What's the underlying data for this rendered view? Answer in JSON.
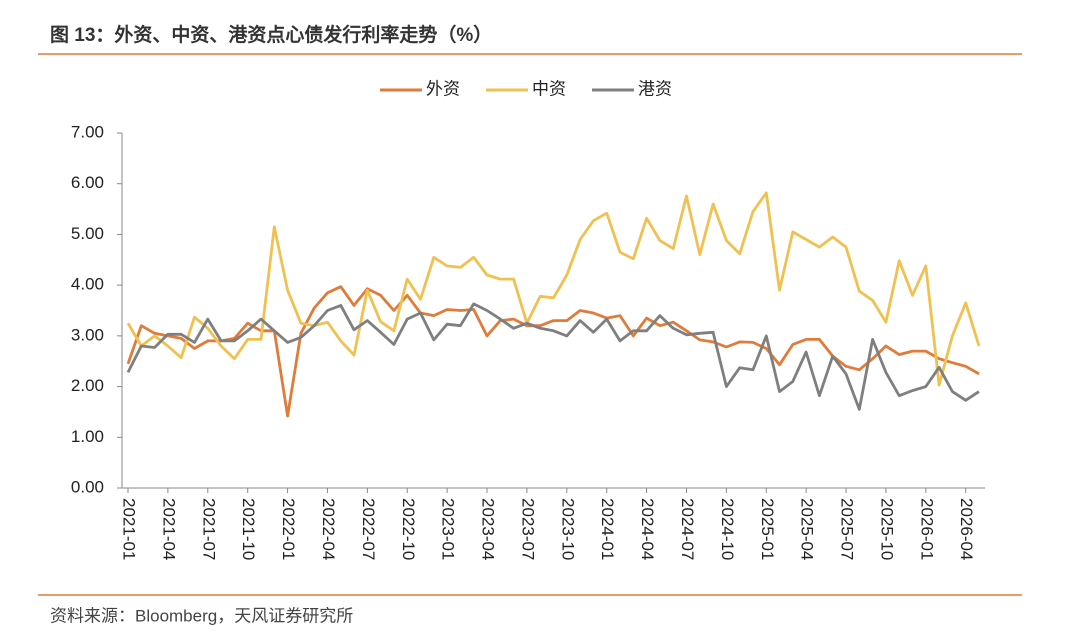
{
  "chart_data": {
    "type": "line",
    "title": "图 13：外资、中资、港资点心债发行利率走势（%）",
    "source": "资料来源：Bloomberg，天风证券研究所",
    "categories": [
      "2021-01",
      null,
      null,
      "2021-04",
      null,
      null,
      "2021-07",
      null,
      null,
      "2021-10",
      null,
      null,
      "2022-01",
      null,
      null,
      "2022-04",
      null,
      null,
      "2022-07",
      null,
      null,
      "2022-10",
      null,
      null,
      "2023-01",
      null,
      null,
      "2023-04",
      null,
      null,
      "2023-07",
      null,
      null,
      "2023-10",
      null,
      null,
      "2024-01",
      null,
      null,
      "2024-04",
      null,
      null,
      "2024-07",
      null,
      null,
      "2024-10",
      null,
      null,
      "2025-01",
      null,
      null,
      "2025-04",
      null,
      null,
      "2025-07",
      null,
      null,
      "2025-10",
      null,
      null,
      "2026-01",
      null,
      null,
      "2026-04",
      null
    ],
    "series": [
      {
        "name": "外资",
        "color": "#e07b39",
        "values": [
          2.45,
          3.2,
          3.05,
          3.0,
          2.95,
          2.75,
          2.9,
          2.9,
          2.95,
          3.25,
          3.1,
          3.1,
          1.42,
          3.05,
          3.55,
          3.85,
          3.97,
          3.6,
          3.93,
          3.8,
          3.5,
          3.8,
          3.45,
          3.4,
          3.52,
          3.5,
          3.52,
          3.0,
          3.3,
          3.33,
          3.2,
          3.2,
          3.3,
          3.3,
          3.5,
          3.45,
          3.35,
          3.4,
          3.0,
          3.35,
          3.2,
          3.27,
          3.1,
          2.92,
          2.88,
          2.78,
          2.88,
          2.87,
          2.75,
          2.43,
          2.83,
          2.93,
          2.93,
          2.6,
          2.4,
          2.33,
          2.55,
          2.8,
          2.63,
          2.7,
          2.7,
          2.55,
          2.47,
          2.4,
          2.25
        ]
      },
      {
        "name": "中资",
        "color": "#f0c150",
        "values": [
          3.25,
          2.8,
          3.0,
          2.8,
          2.57,
          3.37,
          3.15,
          2.8,
          2.55,
          2.93,
          2.93,
          5.15,
          3.9,
          3.25,
          3.2,
          3.27,
          2.9,
          2.62,
          3.9,
          3.28,
          3.1,
          4.12,
          3.72,
          4.55,
          4.38,
          4.35,
          4.55,
          4.2,
          4.12,
          4.12,
          3.25,
          3.78,
          3.75,
          4.2,
          4.9,
          5.27,
          5.42,
          4.65,
          4.52,
          5.32,
          4.88,
          4.72,
          5.76,
          4.6,
          5.6,
          4.88,
          4.62,
          5.45,
          5.82,
          3.9,
          5.05,
          4.9,
          4.75,
          4.95,
          4.75,
          3.88,
          3.7,
          3.27,
          4.48,
          3.8,
          4.38,
          2.03,
          3.0,
          3.65,
          2.8
        ]
      },
      {
        "name": "港资",
        "color": "#7f7f7f",
        "values": [
          2.28,
          2.8,
          2.77,
          3.03,
          3.03,
          2.87,
          3.33,
          2.9,
          2.9,
          3.1,
          3.33,
          3.1,
          2.87,
          2.97,
          3.2,
          3.5,
          3.6,
          3.12,
          3.3,
          3.07,
          2.83,
          3.33,
          3.45,
          2.92,
          3.23,
          3.2,
          3.63,
          3.5,
          3.33,
          3.15,
          3.25,
          3.15,
          3.1,
          3.0,
          3.3,
          3.07,
          3.33,
          2.9,
          3.1,
          3.1,
          3.4,
          3.15,
          3.02,
          3.05,
          3.07,
          2.0,
          2.37,
          2.33,
          3.0,
          1.9,
          2.1,
          2.68,
          1.82,
          2.6,
          2.25,
          1.55,
          2.93,
          2.28,
          1.82,
          1.92,
          2.0,
          2.38,
          1.9,
          1.73,
          1.9
        ]
      }
    ],
    "ylim": [
      0,
      7
    ],
    "yticks": [
      {
        "value": 0,
        "label": "0.00"
      },
      {
        "value": 1,
        "label": "1.00"
      },
      {
        "value": 2,
        "label": "2.00"
      },
      {
        "value": 3,
        "label": "3.00"
      },
      {
        "value": 4,
        "label": "4.00"
      },
      {
        "value": 5,
        "label": "5.00"
      },
      {
        "value": 6,
        "label": "6.00"
      },
      {
        "value": 7,
        "label": "7.00"
      }
    ],
    "legend": "top"
  }
}
